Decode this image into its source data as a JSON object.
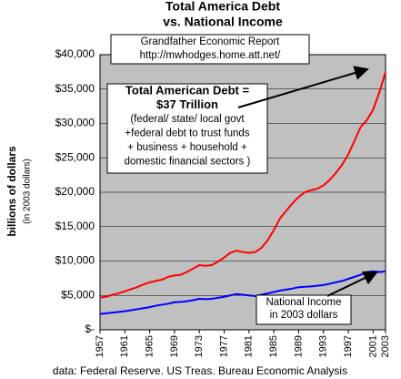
{
  "chart_data": {
    "type": "line",
    "title": [
      "Total America Debt",
      "vs. National Income"
    ],
    "y_label": "billions of dollars",
    "y_label_note": "(in 2003 dollars)",
    "source": "data: Federal Reserve. US Treas. Bureau Economic Analysis",
    "annotations": [
      {
        "lines": [
          "Grandfather Economic Report",
          "http://mwhodges.home.att.net/"
        ]
      },
      {
        "lines": [
          "Total American Debt =",
          "$37 Trillion",
          "(federal/ state/ local govt",
          "+federal debt to trust funds",
          "+ business + household +",
          "domestic financial sectors )"
        ]
      },
      {
        "lines": [
          "National Income",
          "in 2003 dollars"
        ]
      }
    ],
    "x": [
      1957,
      1958,
      1959,
      1960,
      1961,
      1962,
      1963,
      1964,
      1965,
      1966,
      1967,
      1968,
      1969,
      1970,
      1971,
      1972,
      1973,
      1974,
      1975,
      1976,
      1977,
      1978,
      1979,
      1980,
      1981,
      1982,
      1983,
      1984,
      1985,
      1986,
      1987,
      1988,
      1989,
      1990,
      1991,
      1992,
      1993,
      1994,
      1995,
      1996,
      1997,
      1998,
      1999,
      2000,
      2001,
      2002,
      2003
    ],
    "series": [
      {
        "color": "#ff0000",
        "values": [
          4700,
          4800,
          5100,
          5300,
          5600,
          5900,
          6200,
          6600,
          6900,
          7100,
          7300,
          7700,
          7900,
          8000,
          8400,
          8900,
          9400,
          9300,
          9400,
          9900,
          10500,
          11200,
          11500,
          11300,
          11200,
          11300,
          11900,
          13000,
          14500,
          16200,
          17300,
          18400,
          19300,
          20000,
          20300,
          20500,
          21000,
          21800,
          22800,
          24000,
          25500,
          27500,
          29500,
          30500,
          32000,
          34500,
          37500
        ]
      },
      {
        "color": "#0000ff",
        "values": [
          2300,
          2400,
          2500,
          2600,
          2700,
          2850,
          3000,
          3150,
          3300,
          3500,
          3650,
          3800,
          4000,
          4050,
          4150,
          4300,
          4500,
          4450,
          4500,
          4650,
          4800,
          5000,
          5200,
          5100,
          5000,
          4900,
          5100,
          5300,
          5500,
          5700,
          5850,
          6000,
          6200,
          6250,
          6300,
          6400,
          6500,
          6700,
          6900,
          7100,
          7400,
          7700,
          8000,
          8400,
          8500,
          8400,
          8500
        ]
      }
    ],
    "xlim": [
      1957,
      2003
    ],
    "xticks": [
      1957,
      1961,
      1965,
      1969,
      1973,
      1977,
      1981,
      1985,
      1989,
      1993,
      1997,
      2001,
      2003
    ],
    "ylim": [
      0,
      40000
    ],
    "yticks": [
      {
        "value": 0,
        "label": "$-"
      },
      {
        "value": 5000,
        "label": "$5,000"
      },
      {
        "value": 10000,
        "label": "$10,000"
      },
      {
        "value": 15000,
        "label": "$15,000"
      },
      {
        "value": 20000,
        "label": "$20,000"
      },
      {
        "value": 25000,
        "label": "$25,000"
      },
      {
        "value": 30000,
        "label": "$30,000"
      },
      {
        "value": 35000,
        "label": "$35,000"
      },
      {
        "value": 40000,
        "label": "$40,000"
      }
    ],
    "grid": true,
    "plot_color": "#c0c0c0"
  }
}
